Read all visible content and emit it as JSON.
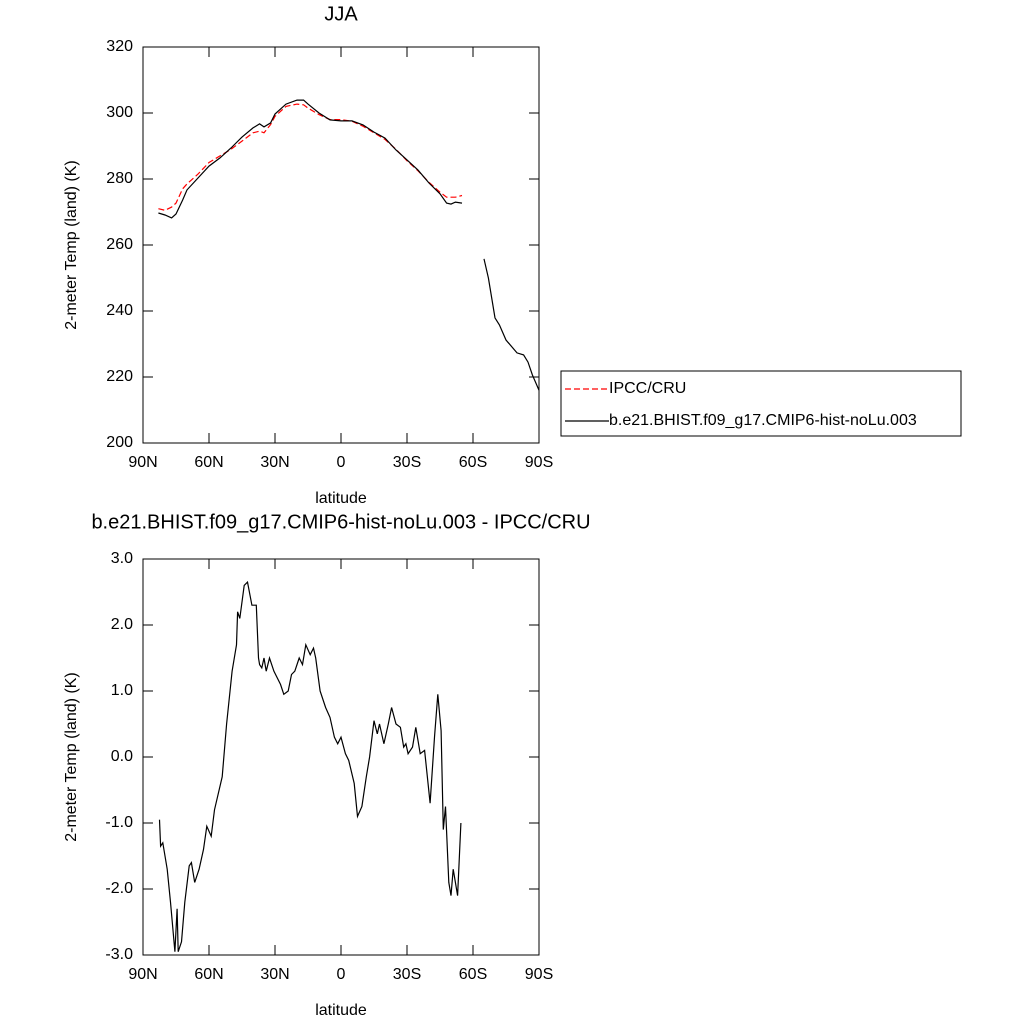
{
  "chart_data": [
    {
      "type": "line",
      "title": "JJA",
      "xlabel": "latitude",
      "ylabel": "2-meter Temp (land) (K)",
      "x": [
        83,
        80,
        77,
        75,
        72,
        70,
        65,
        60,
        55,
        50,
        45,
        40,
        37,
        35,
        32,
        30,
        25,
        20,
        17,
        15,
        10,
        5,
        0,
        -5,
        -10,
        -15,
        -20,
        -25,
        -30,
        -35,
        -40,
        -45,
        -48,
        -50,
        -52,
        -55,
        -57,
        -60,
        -65,
        -67,
        -70,
        -72,
        -75,
        -80,
        -83,
        -85,
        -87,
        -90
      ],
      "series": [
        {
          "name": "IPCC/CRU",
          "color": "#ff0000",
          "dash": true,
          "values": [
            271,
            270.5,
            271.5,
            272.7,
            277,
            278.5,
            281.5,
            285,
            287,
            289,
            291.5,
            294,
            294.5,
            294,
            296.5,
            299,
            302,
            302.7,
            302.5,
            301.5,
            299.5,
            298,
            298,
            297.5,
            296,
            294,
            292,
            289,
            285.5,
            282.5,
            279,
            276,
            274.5,
            274.5,
            274.5,
            275,
            null,
            null,
            null,
            null,
            null,
            null,
            null,
            null,
            null,
            null,
            null,
            null
          ]
        },
        {
          "name": "b.e21.BHIST.f09_g17.CMIP6-hist-noLu.003",
          "color": "#000000",
          "dash": false,
          "values": [
            269.7,
            269.1,
            268.2,
            269.4,
            273.6,
            276.7,
            280.3,
            283.9,
            286.4,
            289.4,
            292.7,
            295.5,
            296.7,
            295.8,
            297,
            299.7,
            302.7,
            303.9,
            303.9,
            302.7,
            300,
            297.9,
            297.6,
            297.6,
            296.4,
            294.2,
            292.4,
            288.8,
            285.8,
            282.7,
            278.8,
            275.5,
            272.7,
            272.4,
            273,
            272.7,
            null,
            null,
            255.8,
            250,
            237.9,
            235.8,
            231.2,
            227.3,
            226.7,
            224.5,
            220.6,
            216
          ]
        }
      ],
      "xlim": [
        90,
        -90
      ],
      "xticks": [
        {
          "value": 90,
          "label": "90N"
        },
        {
          "value": 60,
          "label": "60N"
        },
        {
          "value": 30,
          "label": "30N"
        },
        0,
        {
          "value": -30,
          "label": "30S"
        },
        {
          "value": -60,
          "label": "60S"
        },
        {
          "value": -90,
          "label": "90S"
        }
      ],
      "ylim": [
        200,
        320
      ],
      "yticks": [
        200,
        220,
        240,
        260,
        280,
        300,
        320
      ],
      "legend": "right"
    },
    {
      "type": "line",
      "title": "b.e21.BHIST.f09_g17.CMIP6-hist-noLu.003 - IPCC/CRU",
      "xlabel": "latitude",
      "ylabel": "2-meter Temp (land) (K)",
      "x": [
        82.5,
        82,
        81,
        79,
        77.5,
        75.5,
        74.5,
        74,
        72.5,
        71,
        69,
        68,
        66.5,
        64.5,
        62.5,
        61,
        59,
        57.5,
        54,
        52,
        49.5,
        47.5,
        47,
        46,
        44,
        42.5,
        40.5,
        38.5,
        37.5,
        37,
        36,
        35,
        34,
        32.5,
        30.5,
        27.5,
        26,
        24,
        22.5,
        21,
        19,
        17.5,
        16,
        14,
        12.5,
        11.5,
        9.5,
        7,
        5,
        3,
        1.5,
        0,
        -2,
        -3.5,
        -6,
        -7.5,
        -9.5,
        -11.5,
        -13,
        -15,
        -16.5,
        -17.5,
        -19.5,
        -21.5,
        -23,
        -25,
        -27,
        -28.5,
        -29.5,
        -30.5,
        -32.5,
        -34,
        -36,
        -38,
        -40.5,
        -42.5,
        -44,
        -45.5,
        -46.5,
        -47.5,
        -49,
        -50,
        -51,
        -52.5,
        -53,
        -54.5
      ],
      "values": [
        -0.95,
        -1.35,
        -1.3,
        -1.7,
        -2.2,
        -2.95,
        -2.3,
        -2.95,
        -2.8,
        -2.2,
        -1.65,
        -1.6,
        -1.9,
        -1.7,
        -1.4,
        -1.05,
        -1.2,
        -0.8,
        -0.3,
        0.5,
        1.3,
        1.7,
        2.2,
        2.1,
        2.6,
        2.65,
        2.3,
        2.3,
        1.5,
        1.4,
        1.35,
        1.5,
        1.3,
        1.5,
        1.3,
        1.1,
        0.95,
        1.0,
        1.25,
        1.3,
        1.5,
        1.4,
        1.7,
        1.55,
        1.65,
        1.5,
        1.0,
        0.75,
        0.6,
        0.3,
        0.2,
        0.3,
        0.05,
        -0.05,
        -0.4,
        -0.9,
        -0.75,
        -0.3,
        0.0,
        0.55,
        0.35,
        0.5,
        0.2,
        0.5,
        0.75,
        0.5,
        0.45,
        0.15,
        0.2,
        0.05,
        0.15,
        0.45,
        0.05,
        0.1,
        -0.7,
        0.3,
        0.95,
        0.4,
        -1.1,
        -0.75,
        -1.9,
        -2.1,
        -1.7,
        -2.0,
        -2.1,
        -1.0
      ],
      "color": "#000000",
      "xlim": [
        90,
        -90
      ],
      "xticks": [
        {
          "value": 90,
          "label": "90N"
        },
        {
          "value": 60,
          "label": "60N"
        },
        {
          "value": 30,
          "label": "30N"
        },
        0,
        {
          "value": -30,
          "label": "30S"
        },
        {
          "value": -60,
          "label": "60S"
        },
        {
          "value": -90,
          "label": "90S"
        }
      ],
      "ylim": [
        -3,
        3
      ],
      "yticks": [
        {
          "value": -3,
          "label": "-3.0"
        },
        {
          "value": -2,
          "label": "-2.0"
        },
        {
          "value": -1,
          "label": "-1.0"
        },
        {
          "value": 0,
          "label": "0.0"
        },
        {
          "value": 1,
          "label": "1.0"
        },
        {
          "value": 2,
          "label": "2.0"
        },
        {
          "value": 3,
          "label": "3.0"
        }
      ]
    }
  ]
}
